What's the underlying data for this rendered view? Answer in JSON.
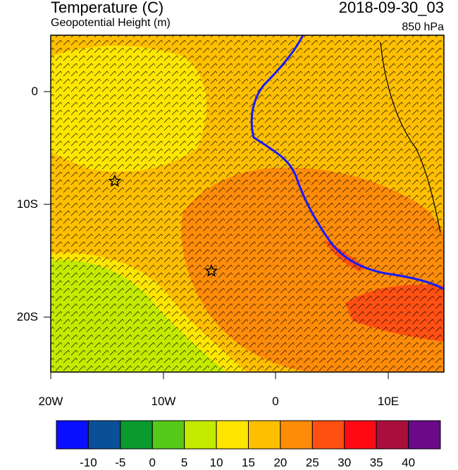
{
  "header": {
    "title": "Temperature (C)",
    "subtitle": "Geopotential Height (m)",
    "valid_time": "2018-09-30_03",
    "level": "850 hPa"
  },
  "map": {
    "lon_range": [
      -20,
      15
    ],
    "lat_range": [
      -25,
      5
    ],
    "y_tick_labels": [
      "0",
      "10S",
      "20S"
    ],
    "x_tick_labels": [
      "20W",
      "10W",
      "0",
      "10E"
    ],
    "markers": [
      {
        "name": "star-marker",
        "lon": -14.3,
        "lat": -8.0
      },
      {
        "name": "star-marker",
        "lon": -5.7,
        "lat": -16.0
      }
    ]
  },
  "colorbar": {
    "labels": [
      "-10",
      "-5",
      "0",
      "5",
      "10",
      "15",
      "20",
      "25",
      "30",
      "35",
      "40"
    ],
    "colors": [
      "#0a10ff",
      "#0a5099",
      "#0a9a30",
      "#56c818",
      "#c4ea00",
      "#ffe600",
      "#ffbf00",
      "#ff8c08",
      "#ff5012",
      "#ff0a14",
      "#a80f3c",
      "#6a0a8a"
    ]
  },
  "fill_colors": {
    "cool": "#c4ea00",
    "warm": "#ffbf00",
    "warmer": "#ff8c08",
    "hot": "#ff5012",
    "yellow": "#ffe600",
    "coast": "#1a1aff"
  }
}
